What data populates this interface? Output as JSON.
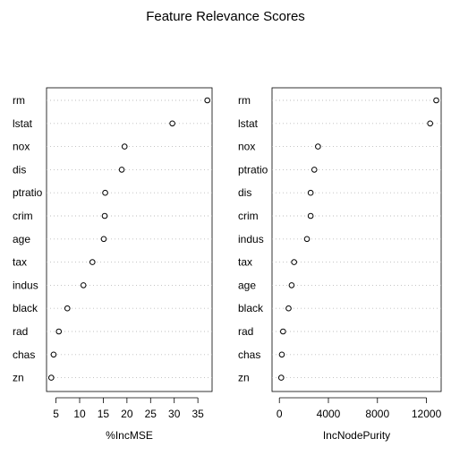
{
  "title": "Feature Relevance Scores",
  "chart_data": [
    {
      "type": "scatter",
      "name": "dotchart",
      "xlabel": "%IncMSE",
      "xlim": [
        3,
        38
      ],
      "xticks": [
        5,
        10,
        15,
        20,
        25,
        30,
        35
      ],
      "categories": [
        "rm",
        "lstat",
        "nox",
        "dis",
        "ptratio",
        "crim",
        "age",
        "tax",
        "indus",
        "black",
        "rad",
        "chas",
        "zn"
      ],
      "values": [
        37.0,
        29.6,
        19.5,
        18.9,
        15.4,
        15.3,
        15.1,
        12.7,
        10.8,
        7.4,
        5.6,
        4.5,
        4.0
      ],
      "grid": "dotted-horizontal"
    },
    {
      "type": "scatter",
      "name": "dotchart",
      "xlabel": "IncNodePurity",
      "xlim": [
        -600,
        13200
      ],
      "xticks": [
        0,
        4000,
        8000,
        12000
      ],
      "categories": [
        "rm",
        "lstat",
        "nox",
        "ptratio",
        "dis",
        "crim",
        "indus",
        "tax",
        "age",
        "black",
        "rad",
        "chas",
        "zn"
      ],
      "values": [
        12800,
        12300,
        3150,
        2850,
        2550,
        2550,
        2250,
        1200,
        1000,
        750,
        300,
        200,
        150
      ],
      "grid": "dotted-horizontal"
    }
  ]
}
